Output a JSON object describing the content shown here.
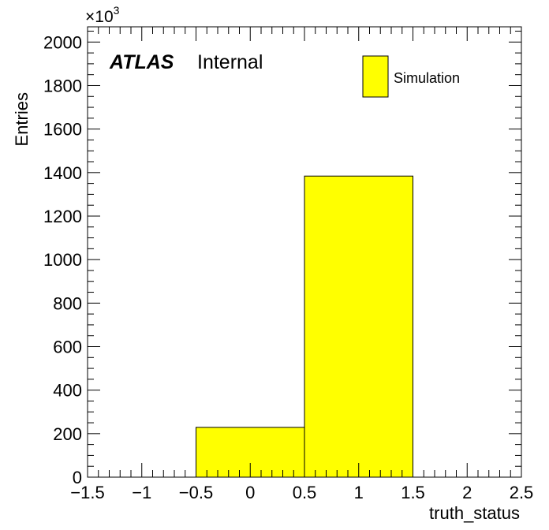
{
  "chart_data": {
    "type": "bar",
    "histogram": true,
    "bins": [
      {
        "low": -1.5,
        "high": -0.5,
        "value": 0
      },
      {
        "low": -0.5,
        "high": 0.5,
        "value": 229
      },
      {
        "low": 0.5,
        "high": 1.5,
        "value": 1384
      },
      {
        "low": 1.5,
        "high": 2.5,
        "value": 0
      }
    ],
    "series": [
      {
        "name": "Simulation",
        "color": "#ffff00"
      }
    ],
    "xlabel": "truth_status",
    "ylabel": "Entries",
    "y_multiplier_label": "×10",
    "y_multiplier_exponent": "3",
    "xlim": [
      -1.5,
      2.5
    ],
    "ylim": [
      0,
      2070
    ],
    "x_ticks": [
      -1.5,
      -1,
      -0.5,
      0,
      0.5,
      1,
      1.5,
      2,
      2.5
    ],
    "x_tick_labels": [
      "−1.5",
      "−1",
      "−0.5",
      "0",
      "0.5",
      "1",
      "1.5",
      "2",
      "2.5"
    ],
    "y_ticks": [
      0,
      200,
      400,
      600,
      800,
      1000,
      1200,
      1400,
      1600,
      1800,
      2000
    ],
    "y_tick_labels": [
      "0",
      "200",
      "400",
      "600",
      "800",
      "1000",
      "1200",
      "1400",
      "1600",
      "1800",
      "2000"
    ],
    "grid": false,
    "legend_position": "top-right",
    "annotation": {
      "atlas": "ATLAS",
      "label": "Internal"
    }
  }
}
